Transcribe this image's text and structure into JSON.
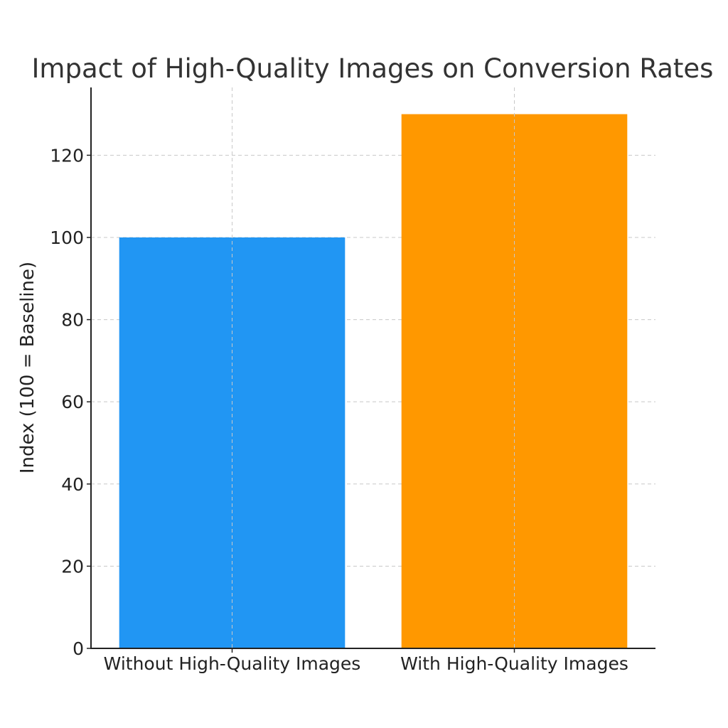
{
  "chart_data": {
    "type": "bar",
    "title": "Impact of High-Quality Images on Conversion Rates",
    "xlabel": "",
    "ylabel": "Index (100 = Baseline)",
    "categories": [
      "Without High-Quality Images",
      "With High-Quality Images"
    ],
    "values": [
      100,
      130
    ],
    "colors": [
      "#2196f3",
      "#ff9800"
    ],
    "ylim": [
      0,
      136.5
    ],
    "yticks": [
      0,
      20,
      40,
      60,
      80,
      100,
      120
    ],
    "grid": true,
    "legend": "none"
  }
}
